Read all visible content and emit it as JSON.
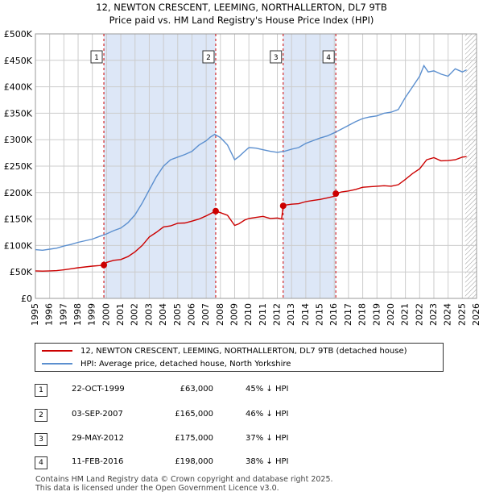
{
  "title_line1": "12, NEWTON CRESCENT, LEEMING, NORTHALLERTON, DL7 9TB",
  "title_line2": "Price paid vs. HM Land Registry's House Price Index (HPI)",
  "legend": {
    "property_label": "12, NEWTON CRESCENT, LEEMING, NORTHALLERTON, DL7 9TB (detached house)",
    "hpi_label": "HPI: Average price, detached house, North Yorkshire"
  },
  "colors": {
    "property": "#cc0000",
    "hpi": "#5b8fcf",
    "shade": "#dde7f7",
    "grid": "#cccccc",
    "sale_line": "#cc0000"
  },
  "sales": [
    {
      "num": "1",
      "date": "22-OCT-1999",
      "price": "£63,000",
      "hpi_diff": "45% ↓ HPI"
    },
    {
      "num": "2",
      "date": "03-SEP-2007",
      "price": "£165,000",
      "hpi_diff": "46% ↓ HPI"
    },
    {
      "num": "3",
      "date": "29-MAY-2012",
      "price": "£175,000",
      "hpi_diff": "37% ↓ HPI"
    },
    {
      "num": "4",
      "date": "11-FEB-2016",
      "price": "£198,000",
      "hpi_diff": "38% ↓ HPI"
    }
  ],
  "footer": {
    "line1": "Contains HM Land Registry data © Crown copyright and database right 2025.",
    "line2": "This data is licensed under the Open Government Licence v3.0."
  },
  "chart_data": {
    "type": "line",
    "title": "12, NEWTON CRESCENT, LEEMING, NORTHALLERTON, DL7 9TB",
    "subtitle": "Price paid vs. HM Land Registry's House Price Index (HPI)",
    "xlabel": "",
    "ylabel": "",
    "xlim": [
      1995,
      2026
    ],
    "ylim": [
      0,
      500000
    ],
    "x_ticks": [
      1995,
      1996,
      1997,
      1998,
      1999,
      2000,
      2001,
      2002,
      2003,
      2004,
      2005,
      2006,
      2007,
      2008,
      2009,
      2010,
      2011,
      2012,
      2013,
      2014,
      2015,
      2016,
      2017,
      2018,
      2019,
      2020,
      2021,
      2022,
      2023,
      2024,
      2025,
      2026
    ],
    "y_ticks": [
      0,
      50000,
      100000,
      150000,
      200000,
      250000,
      300000,
      350000,
      400000,
      450000,
      500000
    ],
    "y_tick_labels": [
      "£0",
      "£50K",
      "£100K",
      "£150K",
      "£200K",
      "£250K",
      "£300K",
      "£350K",
      "£400K",
      "£450K",
      "£500K"
    ],
    "shaded_ranges": [
      [
        1999.81,
        2007.67
      ],
      [
        2012.41,
        2016.11
      ]
    ],
    "hatched_from": 2025.2,
    "sale_points": [
      {
        "label": "1",
        "x": 1999.81,
        "y": 63000
      },
      {
        "label": "2",
        "x": 2007.67,
        "y": 165000
      },
      {
        "label": "3",
        "x": 2012.41,
        "y": 175000
      },
      {
        "label": "4",
        "x": 2016.11,
        "y": 198000
      }
    ],
    "series": [
      {
        "name": "12, NEWTON CRESCENT, LEEMING, NORTHALLERTON, DL7 9TB (detached house)",
        "color": "#cc0000",
        "x": [
          1995,
          1995.5,
          1996,
          1996.5,
          1997,
          1997.5,
          1998,
          1998.5,
          1999,
          1999.5,
          1999.81,
          2000,
          2000.5,
          2001,
          2001.5,
          2002,
          2002.5,
          2003,
          2003.5,
          2004,
          2004.5,
          2005,
          2005.5,
          2006,
          2006.5,
          2007,
          2007.3,
          2007.67,
          2008,
          2008.5,
          2009,
          2009.3,
          2009.7,
          2010,
          2010.5,
          2011,
          2011.5,
          2012,
          2012.3,
          2012.41,
          2012.6,
          2013,
          2013.5,
          2014,
          2014.5,
          2015,
          2015.5,
          2016,
          2016.11,
          2016.5,
          2017,
          2017.5,
          2018,
          2018.5,
          2019,
          2019.5,
          2020,
          2020.5,
          2021,
          2021.5,
          2022,
          2022.5,
          2023,
          2023.5,
          2024,
          2024.5,
          2025,
          2025.3
        ],
        "y": [
          52000,
          51500,
          52000,
          52500,
          54000,
          56000,
          58000,
          59500,
          61000,
          62000,
          63000,
          68000,
          72000,
          73500,
          79000,
          88000,
          100000,
          116000,
          125000,
          135000,
          137000,
          142000,
          142500,
          146000,
          150000,
          156000,
          160000,
          165000,
          162000,
          157000,
          138000,
          141000,
          148000,
          151000,
          153000,
          155000,
          151000,
          152000,
          150000,
          175000,
          176500,
          178000,
          179000,
          183000,
          185000,
          187000,
          190000,
          193000,
          198000,
          201000,
          203000,
          206000,
          210000,
          211000,
          212000,
          213000,
          212000,
          215000,
          225000,
          236000,
          245000,
          262000,
          266000,
          260000,
          260500,
          262000,
          267000,
          268000
        ]
      },
      {
        "name": "HPI: Average price, detached house, North Yorkshire",
        "color": "#5b8fcf",
        "x": [
          1995,
          1995.5,
          1996,
          1996.5,
          1997,
          1997.5,
          1998,
          1998.5,
          1999,
          1999.5,
          2000,
          2000.5,
          2001,
          2001.5,
          2002,
          2002.5,
          2003,
          2003.5,
          2004,
          2004.5,
          2005,
          2005.5,
          2006,
          2006.5,
          2007,
          2007.3,
          2007.6,
          2008,
          2008.5,
          2009,
          2009.3,
          2009.7,
          2010,
          2010.5,
          2011,
          2011.5,
          2012,
          2012.5,
          2013,
          2013.5,
          2014,
          2014.5,
          2015,
          2015.5,
          2016,
          2016.5,
          2017,
          2017.5,
          2018,
          2018.5,
          2019,
          2019.5,
          2020,
          2020.5,
          2021,
          2021.5,
          2022,
          2022.3,
          2022.6,
          2023,
          2023.5,
          2024,
          2024.5,
          2025,
          2025.3
        ],
        "y": [
          92000,
          91000,
          93000,
          95000,
          99000,
          102000,
          106000,
          109000,
          112000,
          117000,
          122000,
          128000,
          133000,
          143000,
          158000,
          180000,
          205000,
          230000,
          250000,
          262000,
          267000,
          272000,
          278000,
          290000,
          298000,
          305000,
          310000,
          304000,
          290000,
          262000,
          268000,
          278000,
          285000,
          284000,
          281000,
          278000,
          276000,
          278000,
          282000,
          285000,
          293000,
          298000,
          303000,
          307000,
          313000,
          320000,
          327000,
          334000,
          340000,
          343000,
          345000,
          350000,
          352000,
          357000,
          380000,
          400000,
          420000,
          440000,
          428000,
          430000,
          424000,
          420000,
          434000,
          428000,
          432000
        ]
      }
    ]
  }
}
